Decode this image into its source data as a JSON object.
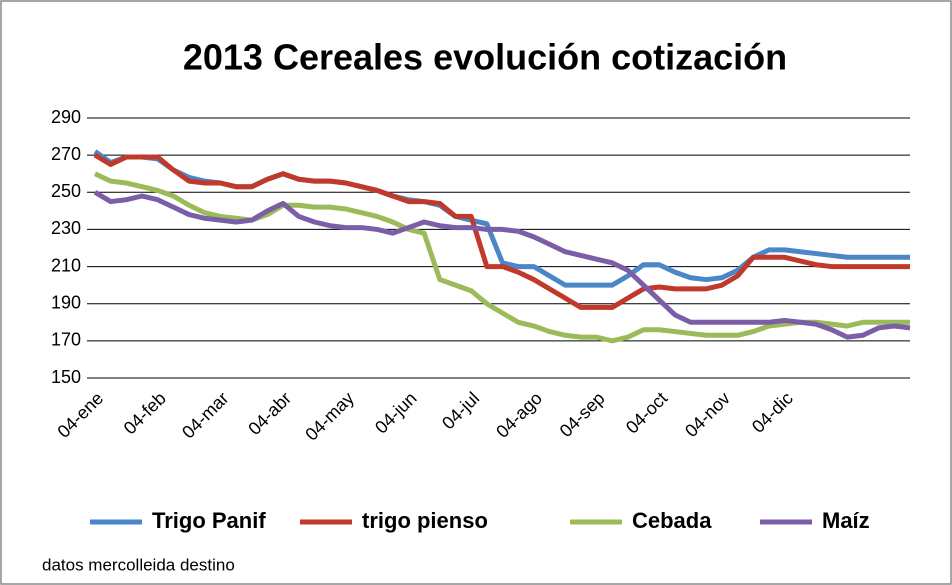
{
  "chart_data": {
    "type": "line",
    "title": "2013 Cereales evolución cotización",
    "note": "datos mercolleida destino",
    "categories": [
      "04-ene",
      null,
      null,
      null,
      "04-feb",
      null,
      null,
      null,
      "04-mar",
      null,
      null,
      null,
      "04-abr",
      null,
      null,
      null,
      "04-may",
      null,
      null,
      null,
      "04-jun",
      null,
      null,
      null,
      "04-jul",
      null,
      null,
      null,
      "04-ago",
      null,
      null,
      null,
      "04-sep",
      null,
      null,
      null,
      "04-oct",
      null,
      null,
      null,
      "04-nov",
      null,
      null,
      null,
      "04-dic",
      null,
      null,
      null,
      null,
      null,
      null,
      null,
      null
    ],
    "series": [
      {
        "name": "Trigo Panif",
        "color": "#4a86c8",
        "values": [
          272,
          266,
          269,
          269,
          268,
          262,
          258,
          256,
          255,
          253,
          253,
          257,
          260,
          257,
          256,
          256,
          255,
          253,
          251,
          248,
          246,
          245,
          243,
          237,
          235,
          233,
          212,
          210,
          210,
          205,
          200,
          200,
          200,
          200,
          205,
          211,
          211,
          207,
          204,
          203,
          204,
          208,
          215,
          219,
          219,
          218,
          217,
          216,
          215,
          215,
          215,
          215,
          215
        ]
      },
      {
        "name": "trigo pienso",
        "color": "#c0392b",
        "values": [
          270,
          265,
          269,
          269,
          269,
          262,
          256,
          255,
          255,
          253,
          253,
          257,
          260,
          257,
          256,
          256,
          255,
          253,
          251,
          248,
          245,
          245,
          244,
          237,
          237,
          210,
          210,
          207,
          203,
          198,
          193,
          188,
          188,
          188,
          193,
          198,
          199,
          198,
          198,
          198,
          200,
          205,
          215,
          215,
          215,
          213,
          211,
          210,
          210,
          210,
          210,
          210,
          210
        ]
      },
      {
        "name": "Cebada",
        "color": "#9bbb59",
        "values": [
          260,
          256,
          255,
          253,
          251,
          248,
          243,
          239,
          237,
          236,
          235,
          238,
          243,
          243,
          242,
          242,
          241,
          239,
          237,
          234,
          230,
          228,
          203,
          200,
          197,
          190,
          185,
          180,
          178,
          175,
          173,
          172,
          172,
          170,
          172,
          176,
          176,
          175,
          174,
          173,
          173,
          173,
          175,
          178,
          179,
          180,
          180,
          179,
          178,
          180,
          180,
          180,
          180
        ]
      },
      {
        "name": "Maíz",
        "color": "#7b5ea7",
        "values": [
          250,
          245,
          246,
          248,
          246,
          242,
          238,
          236,
          235,
          234,
          235,
          240,
          244,
          237,
          234,
          232,
          231,
          231,
          230,
          228,
          231,
          234,
          232,
          231,
          231,
          230,
          230,
          229,
          226,
          222,
          218,
          216,
          214,
          212,
          208,
          200,
          192,
          184,
          180,
          180,
          180,
          180,
          180,
          180,
          181,
          180,
          179,
          176,
          172,
          173,
          177,
          178,
          177
        ]
      }
    ],
    "ylim": [
      150,
      290
    ],
    "yticks": [
      150,
      170,
      190,
      210,
      230,
      250,
      270,
      290
    ],
    "grid": true,
    "legend": "bottom"
  }
}
